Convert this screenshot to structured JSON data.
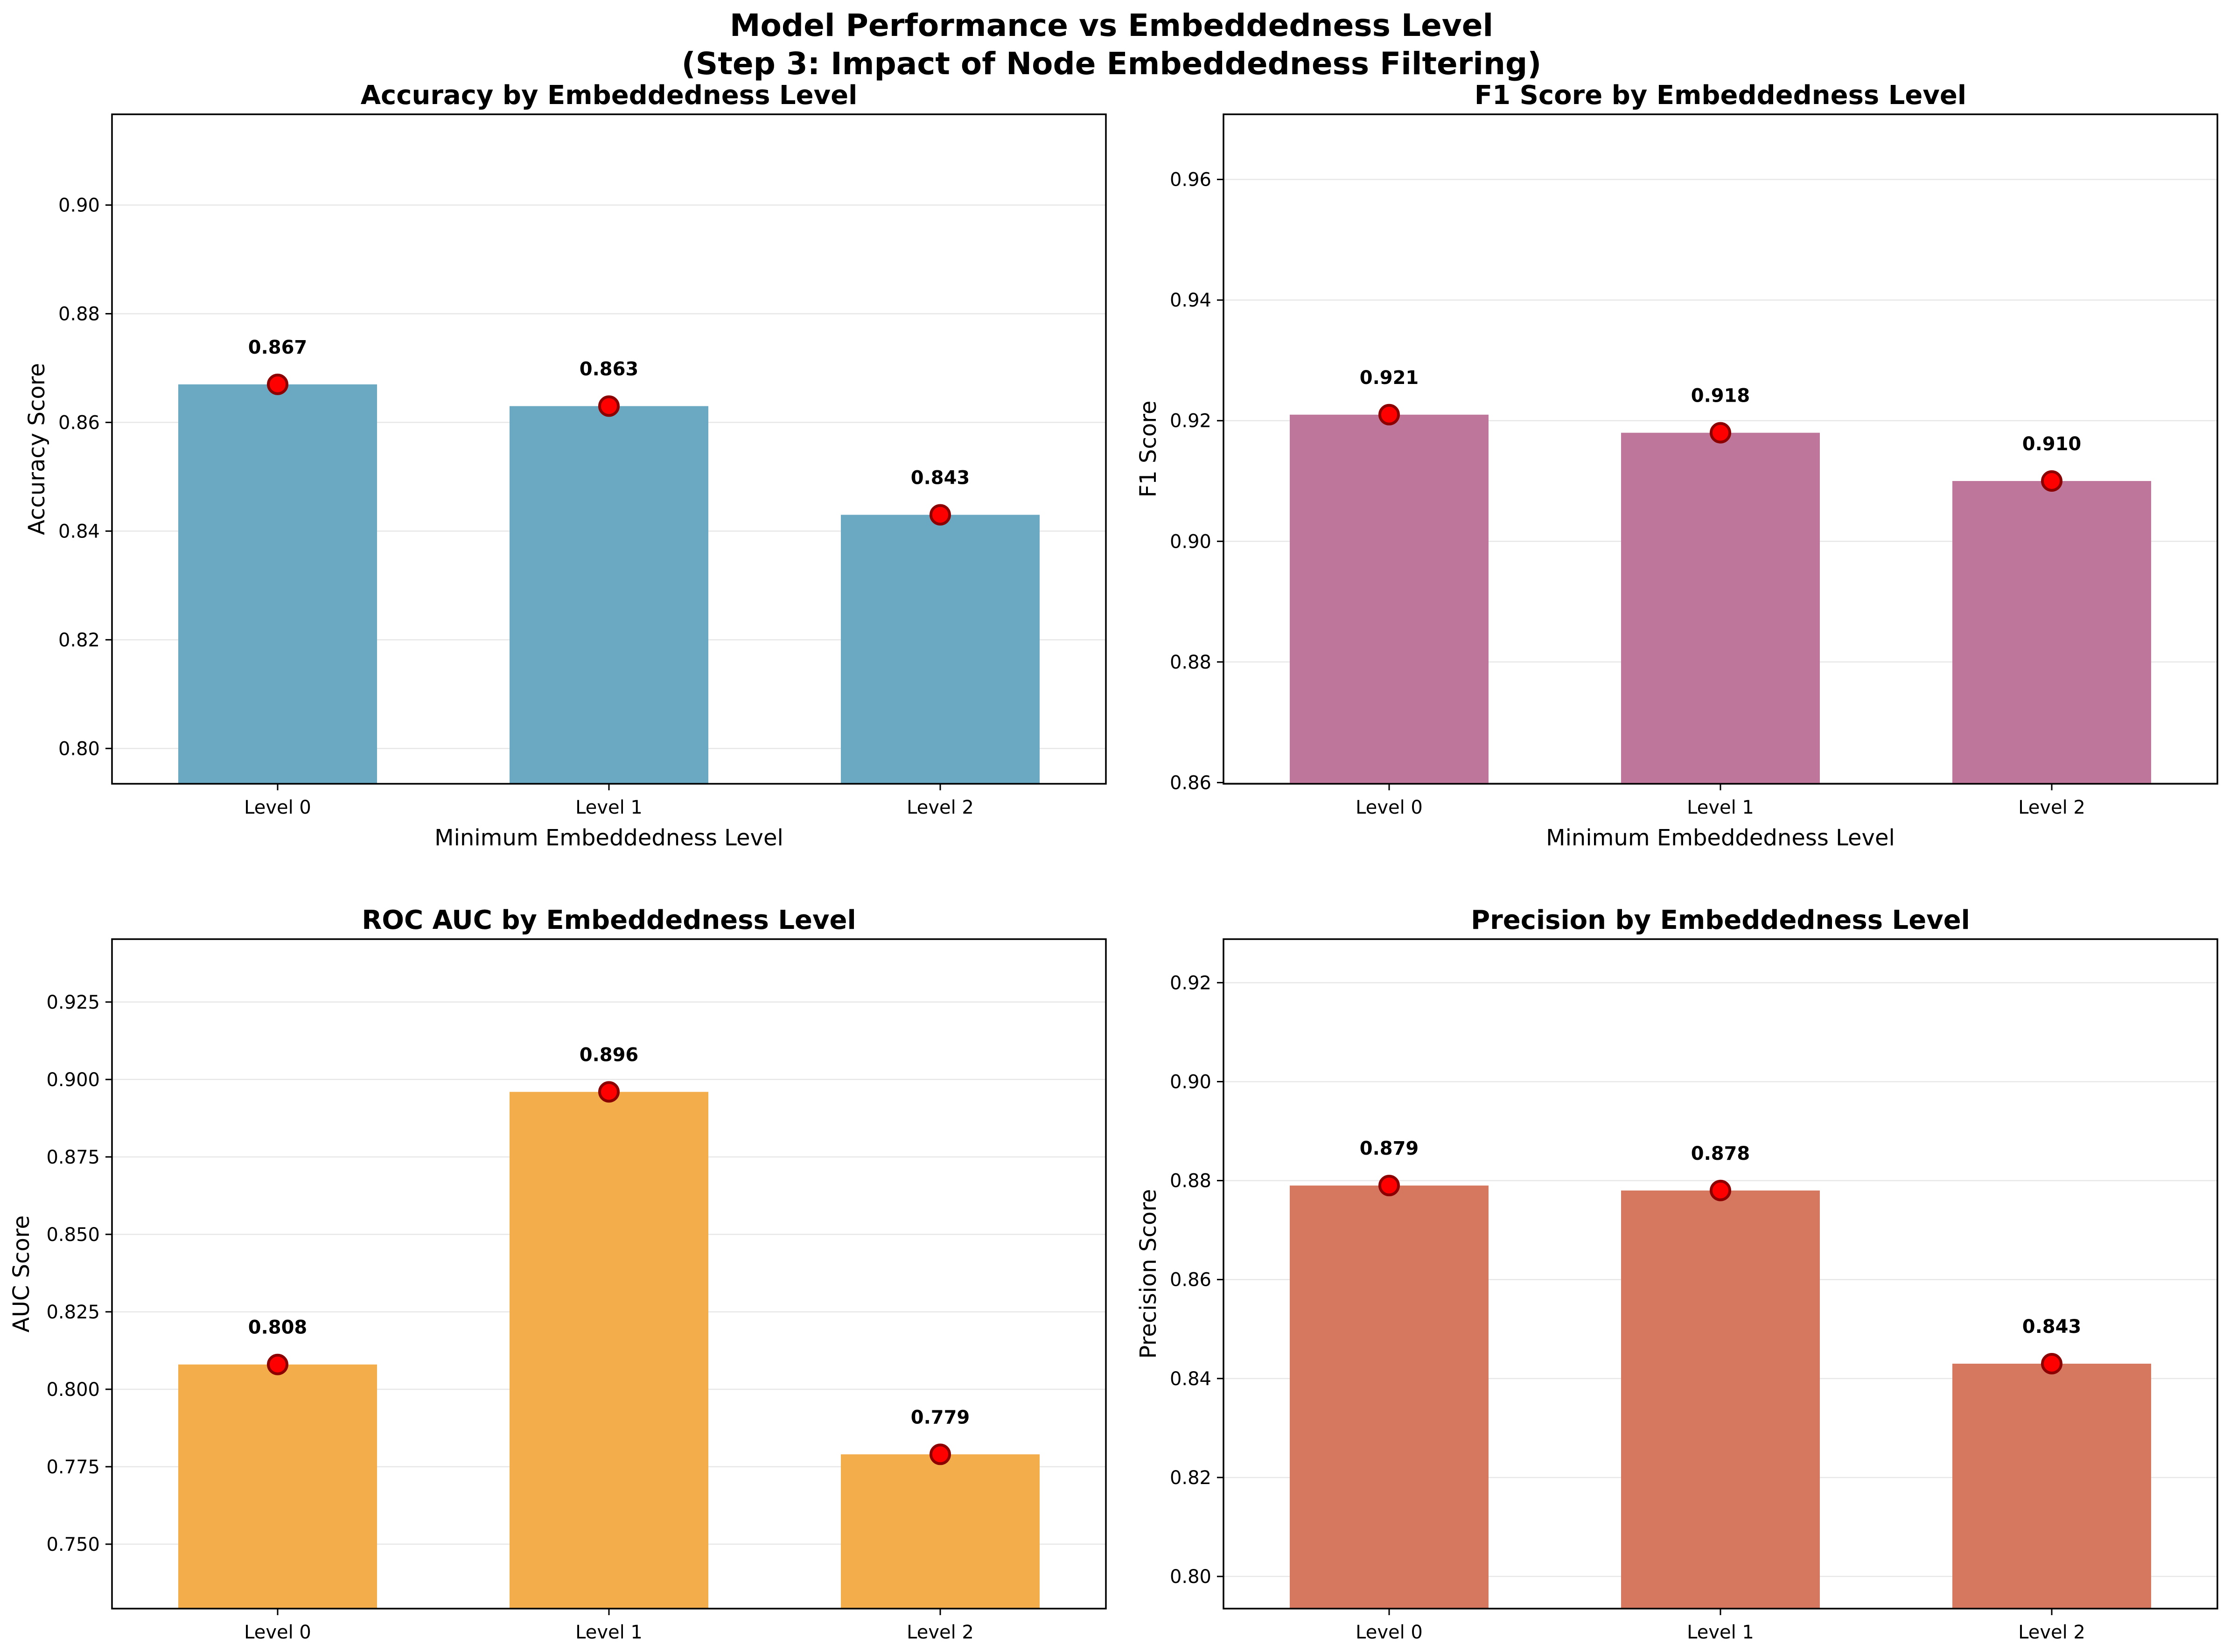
{
  "figure": {
    "title_line1": "Model Performance vs Embeddedness Level",
    "title_line2": "(Step 3: Impact of Node Embeddedness Filtering)"
  },
  "chart_data": [
    {
      "type": "bar",
      "title": "Accuracy by Embeddedness Level",
      "xlabel": "Minimum Embeddedness Level",
      "ylabel": "Accuracy Score",
      "categories": [
        "Level 0",
        "Level 1",
        "Level 2"
      ],
      "values": [
        0.867,
        0.863,
        0.843
      ],
      "data_labels": [
        "0.867",
        "0.863",
        "0.843"
      ],
      "ylim": [
        0.7935,
        0.9167
      ],
      "yticks": [
        0.8,
        0.82,
        0.84,
        0.86,
        0.88,
        0.9
      ],
      "ytick_labels": [
        "0.80",
        "0.82",
        "0.84",
        "0.86",
        "0.88",
        "0.90"
      ],
      "color": "#6ba9c3",
      "marker_color": "#ff0000",
      "grid": "y"
    },
    {
      "type": "bar",
      "title": "F1 Score by Embeddedness Level",
      "xlabel": "Minimum Embeddedness Level",
      "ylabel": "F1 Score",
      "categories": [
        "Level 0",
        "Level 1",
        "Level 2"
      ],
      "values": [
        0.921,
        0.918,
        0.91
      ],
      "data_labels": [
        "0.921",
        "0.918",
        "0.910"
      ],
      "ylim": [
        0.8598,
        0.9708
      ],
      "yticks": [
        0.86,
        0.88,
        0.9,
        0.92,
        0.94,
        0.96
      ],
      "ytick_labels": [
        "0.86",
        "0.88",
        "0.90",
        "0.92",
        "0.94",
        "0.96"
      ],
      "color": "#be779b",
      "marker_color": "#ff0000",
      "grid": "y"
    },
    {
      "type": "bar",
      "title": "ROC AUC by Embeddedness Level",
      "xlabel": "Minimum Embeddedness Level",
      "ylabel": "AUC Score",
      "categories": [
        "Level 0",
        "Level 1",
        "Level 2"
      ],
      "values": [
        0.808,
        0.896,
        0.779
      ],
      "data_labels": [
        "0.808",
        "0.896",
        "0.779"
      ],
      "ylim": [
        0.7292,
        0.9453
      ],
      "yticks": [
        0.75,
        0.775,
        0.8,
        0.825,
        0.85,
        0.875,
        0.9,
        0.925
      ],
      "ytick_labels": [
        "0.750",
        "0.775",
        "0.800",
        "0.825",
        "0.850",
        "0.875",
        "0.900",
        "0.925"
      ],
      "color": "#f3ae4b",
      "marker_color": "#ff0000",
      "grid": "y"
    },
    {
      "type": "bar",
      "title": "Precision by Embeddedness Level",
      "xlabel": "Minimum Embeddedness Level",
      "ylabel": "Precision Score",
      "categories": [
        "Level 0",
        "Level 1",
        "Level 2"
      ],
      "values": [
        0.879,
        0.878,
        0.843
      ],
      "data_labels": [
        "0.879",
        "0.878",
        "0.843"
      ],
      "ylim": [
        0.7935,
        0.9288
      ],
      "yticks": [
        0.8,
        0.82,
        0.84,
        0.86,
        0.88,
        0.9,
        0.92
      ],
      "ytick_labels": [
        "0.80",
        "0.82",
        "0.84",
        "0.86",
        "0.88",
        "0.90",
        "0.92"
      ],
      "color": "#d67760",
      "marker_color": "#ff0000",
      "grid": "y"
    }
  ]
}
